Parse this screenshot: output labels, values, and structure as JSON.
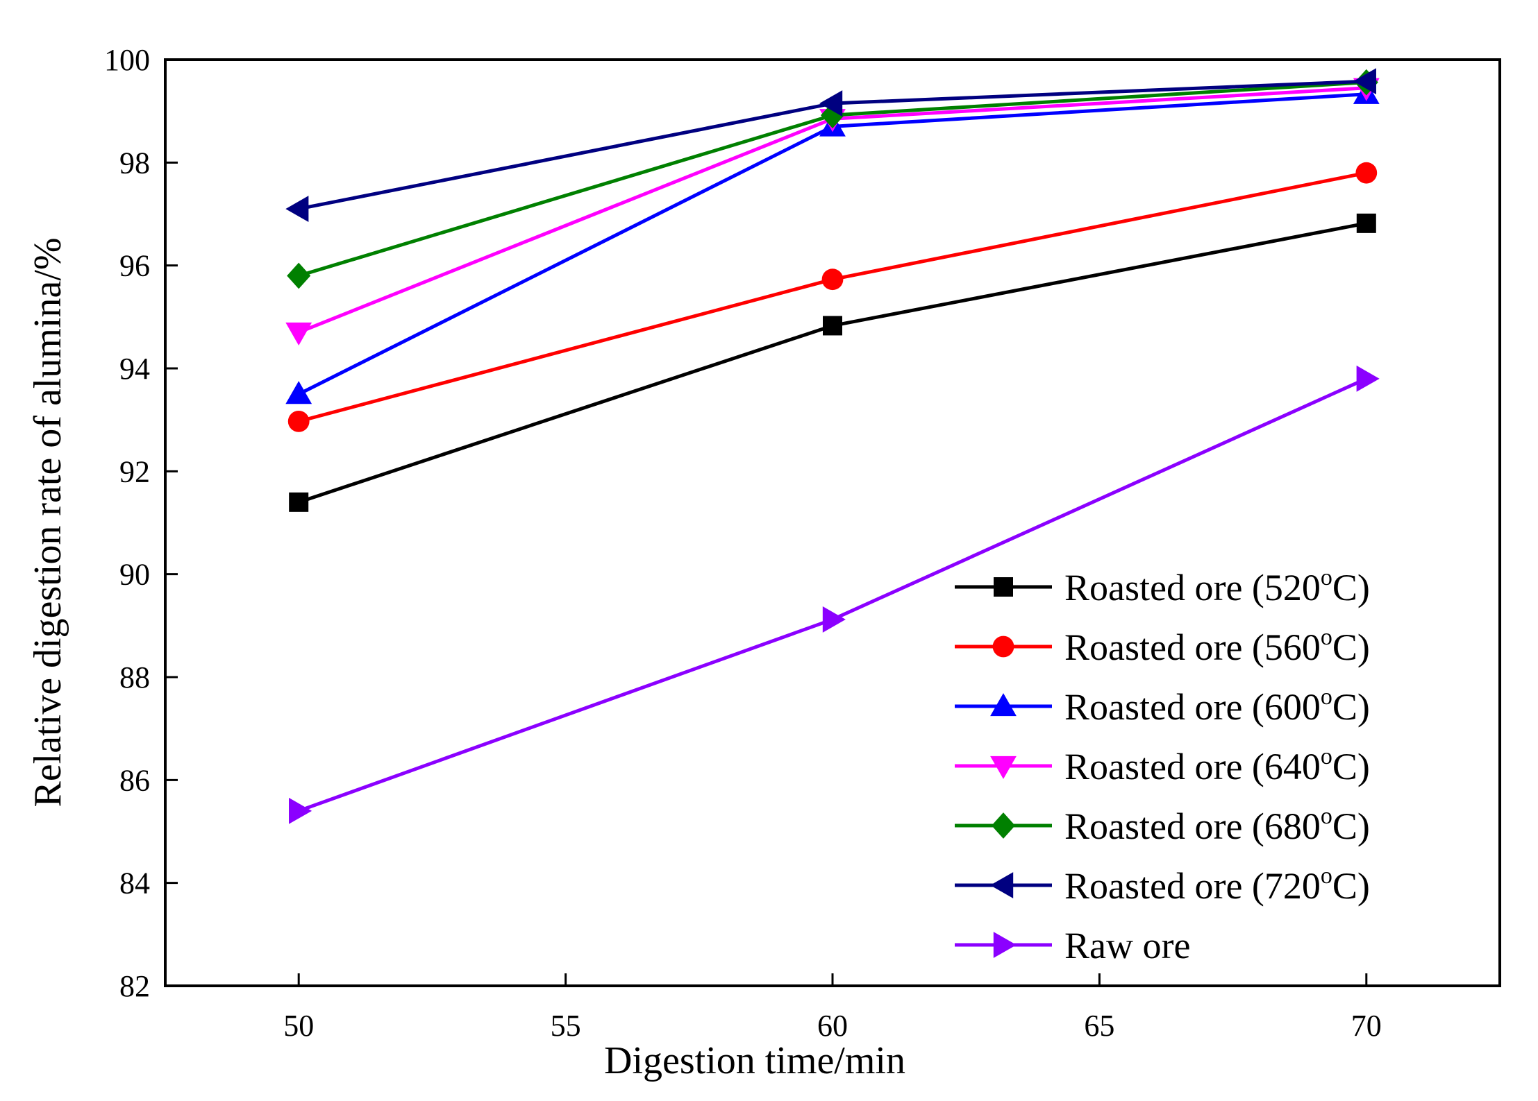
{
  "chart_data": {
    "type": "line",
    "title": "",
    "xlabel": "Digestion time/min",
    "ylabel": "Relative digestion rate of alumina/%",
    "xlim": [
      47.5,
      72.5
    ],
    "ylim": [
      82,
      100
    ],
    "x_ticks": [
      50,
      55,
      60,
      65,
      70
    ],
    "y_ticks": [
      82,
      84,
      86,
      88,
      90,
      92,
      94,
      96,
      98,
      100
    ],
    "x_tick_labels": [
      "50",
      "55",
      "60",
      "65",
      "70"
    ],
    "y_tick_labels": [
      "82",
      "84",
      "86",
      "88",
      "90",
      "92",
      "94",
      "96",
      "98",
      "100"
    ],
    "grid": false,
    "legend_position": "bottom-right",
    "x": [
      50,
      60,
      70
    ],
    "series": [
      {
        "name": "Roasted ore (520°C)",
        "legend_prefix": "Roasted ore (520",
        "legend_sup": "o",
        "legend_suffix": "C)",
        "color": "#000000",
        "marker": "square",
        "values": [
          91.4,
          94.83,
          96.82
        ]
      },
      {
        "name": "Roasted ore (560°C)",
        "legend_prefix": "Roasted ore (560",
        "legend_sup": "o",
        "legend_suffix": "C)",
        "color": "#ff0000",
        "marker": "circle",
        "values": [
          92.97,
          95.73,
          97.8
        ]
      },
      {
        "name": "Roasted ore (600°C)",
        "legend_prefix": "Roasted ore (600",
        "legend_sup": "o",
        "legend_suffix": "C)",
        "color": "#0000ff",
        "marker": "triangle-up",
        "values": [
          93.5,
          98.7,
          99.33
        ]
      },
      {
        "name": "Roasted ore (640°C)",
        "legend_prefix": "Roasted ore (640",
        "legend_sup": "o",
        "legend_suffix": "C)",
        "color": "#ff00ff",
        "marker": "triangle-down",
        "values": [
          94.7,
          98.85,
          99.45
        ]
      },
      {
        "name": "Roasted ore (680°C)",
        "legend_prefix": "Roasted ore (680",
        "legend_sup": "o",
        "legend_suffix": "C)",
        "color": "#008000",
        "marker": "diamond",
        "values": [
          95.8,
          98.92,
          99.56
        ]
      },
      {
        "name": "Roasted ore (720°C)",
        "legend_prefix": "Roasted ore (720",
        "legend_sup": "o",
        "legend_suffix": "C)",
        "color": "#000080",
        "marker": "triangle-left",
        "values": [
          97.1,
          99.15,
          99.58
        ]
      },
      {
        "name": "Raw ore",
        "legend_prefix": "Raw ore",
        "legend_sup": "",
        "legend_suffix": "",
        "color": "#8b00ff",
        "marker": "triangle-right",
        "values": [
          85.4,
          89.12,
          93.8
        ]
      }
    ]
  }
}
